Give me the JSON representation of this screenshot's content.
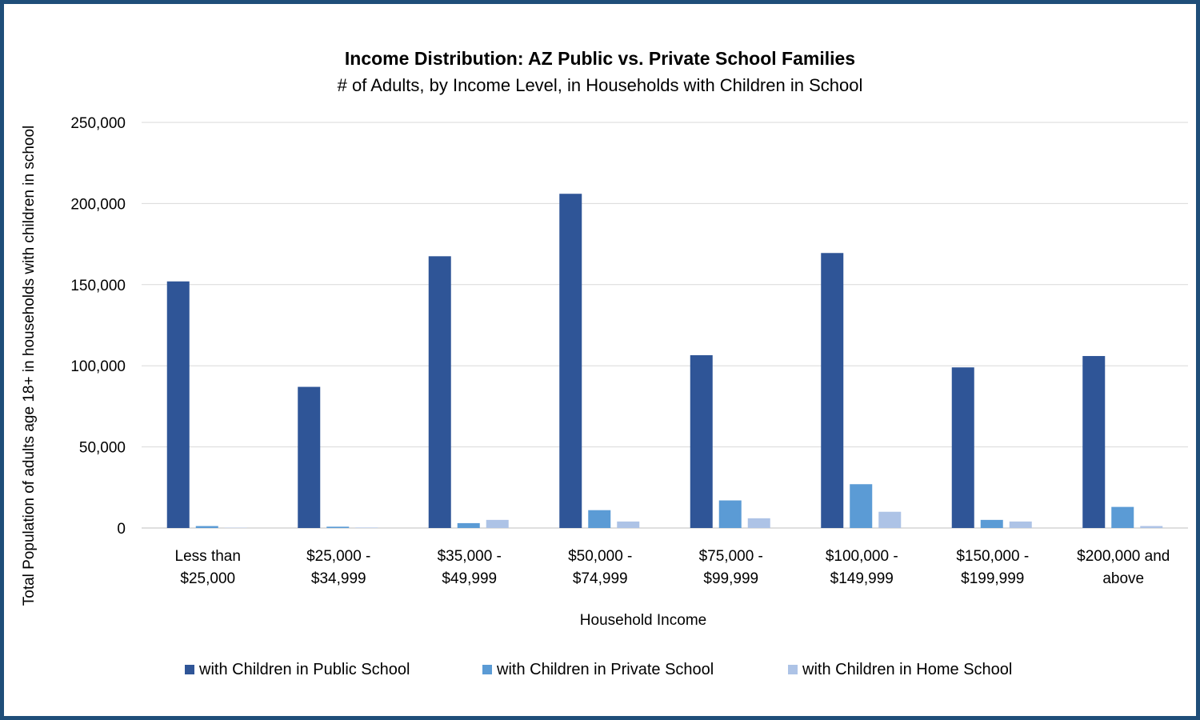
{
  "chart_data": {
    "type": "bar",
    "title": "Income Distribution: AZ Public vs. Private School Families",
    "subtitle": "# of Adults, by Income Level, in Households with Children in School",
    "xlabel": "Household Income",
    "ylabel": "Total Population of adults age 18+ in households with children in school",
    "ylim": [
      0,
      250000
    ],
    "yticks": [
      0,
      50000,
      100000,
      150000,
      200000,
      250000
    ],
    "ytick_labels": [
      "0",
      "50,000",
      "100,000",
      "150,000",
      "200,000",
      "250,000"
    ],
    "grid": true,
    "legend_position": "bottom",
    "categories": [
      [
        "Less than",
        "$25,000"
      ],
      [
        "$25,000 -",
        "$34,999"
      ],
      [
        "$35,000 -",
        "$49,999"
      ],
      [
        "$50,000 -",
        "$74,999"
      ],
      [
        "$75,000 -",
        "$99,999"
      ],
      [
        "$100,000 -",
        "$149,999"
      ],
      [
        "$150,000 -",
        "$199,999"
      ],
      [
        "$200,000 and",
        "above"
      ]
    ],
    "series": [
      {
        "name": "with Children in Public School",
        "color": "#2f5597",
        "values": [
          152000,
          87000,
          167500,
          206000,
          106500,
          169500,
          99000,
          106000
        ]
      },
      {
        "name": "with Children in Private School",
        "color": "#5b9bd5",
        "values": [
          1200,
          800,
          3000,
          11000,
          17000,
          27000,
          5000,
          13000
        ]
      },
      {
        "name": "with Children in Home School",
        "color": "#adc3e6",
        "values": [
          200,
          300,
          5000,
          4000,
          6000,
          10000,
          4000,
          1200
        ]
      }
    ]
  }
}
